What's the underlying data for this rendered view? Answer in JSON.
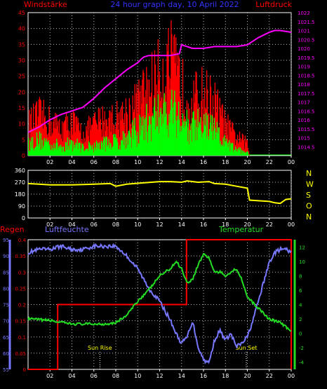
{
  "header": {
    "left_label": "Windstärke",
    "title": "24 hour graph day, 10 April 2022",
    "right_label": "Luftdruck"
  },
  "colors": {
    "background": "#000000",
    "frame": "#ffffff",
    "grid": "#bbbbbb",
    "wind_gust": "#ff0000",
    "wind_mean": "#00ff00",
    "pressure": "#ff00ff",
    "direction": "#ffff00",
    "humidity": "#7777ff",
    "temperature": "#22dd22",
    "rain": "#ff0000",
    "dir_letters": "#ffff00",
    "title": "#3333ff"
  },
  "time_axis": {
    "ticks": [
      "02",
      "04",
      "06",
      "08",
      "10",
      "12",
      "14",
      "16",
      "18",
      "20",
      "22",
      "00"
    ]
  },
  "chart_data": [
    {
      "type": "bar",
      "name": "wind-pressure",
      "y_left": {
        "title": "Windstärke",
        "range": [
          0,
          45
        ],
        "ticks": [
          "0",
          "5",
          "10",
          "15",
          "20",
          "25",
          "30",
          "35",
          "40",
          "45"
        ]
      },
      "y_right": {
        "title": "Luftdruck",
        "range": [
          1014,
          1022
        ],
        "ticks": [
          "1014.5",
          "1015",
          "1015.5",
          "1016",
          "1016.5",
          "1017",
          "1017.5",
          "1018",
          "1018.5",
          "1019",
          "1019.5",
          "1020",
          "1020.5",
          "1021",
          "1021.5",
          "1022"
        ]
      },
      "wind_gust": {
        "hours": [
          0.0,
          1.0,
          2.0,
          3.0,
          4.0,
          5.0,
          6.0,
          7.0,
          8.0,
          9.0,
          10.0,
          11.0,
          12.0,
          13.0,
          14.0,
          15.0,
          16.0,
          17.0,
          18.0,
          19.0,
          20.0,
          20.2
        ],
        "values": [
          10,
          13,
          11,
          9,
          11,
          7,
          10,
          12,
          12,
          14,
          17,
          22,
          26,
          30,
          22,
          18,
          20,
          17,
          10,
          6,
          4,
          0
        ]
      },
      "wind_mean": {
        "hours": [
          0.0,
          1.0,
          2.0,
          3.0,
          4.0,
          5.0,
          6.0,
          7.0,
          8.0,
          9.0,
          10.0,
          11.0,
          12.0,
          13.0,
          14.0,
          15.0,
          16.0,
          17.0,
          18.0,
          19.0,
          20.0,
          20.2
        ],
        "values": [
          4,
          5,
          4,
          3,
          4,
          3,
          3,
          4,
          5,
          6,
          8,
          11,
          14,
          17,
          12,
          9,
          10,
          8,
          4,
          2,
          1,
          0
        ]
      },
      "pressure": {
        "hours": [
          0.0,
          1.0,
          2.0,
          3.0,
          4.0,
          5.0,
          6.0,
          7.0,
          8.0,
          9.0,
          10.0,
          10.5,
          11.0,
          12.0,
          13.0,
          13.8,
          14.0,
          14.5,
          15.0,
          16.0,
          17.0,
          18.0,
          19.0,
          20.0,
          21.0,
          22.0,
          22.5,
          23.0,
          24.0
        ],
        "values": [
          1015.3,
          1015.6,
          1016.0,
          1016.3,
          1016.5,
          1016.7,
          1017.2,
          1017.8,
          1018.3,
          1018.8,
          1019.2,
          1019.5,
          1019.6,
          1019.6,
          1019.6,
          1019.7,
          1020.2,
          1020.1,
          1020.0,
          1020.0,
          1020.1,
          1020.1,
          1020.1,
          1020.2,
          1020.6,
          1020.9,
          1021.0,
          1021.0,
          1020.9
        ]
      }
    },
    {
      "type": "line",
      "name": "wind-direction",
      "y_left": {
        "range": [
          0,
          360
        ],
        "ticks": [
          "0",
          "90",
          "180",
          "270",
          "360"
        ]
      },
      "right_letters": [
        "N",
        "W",
        "S",
        "O",
        "N"
      ],
      "series": [
        {
          "hours": [
            0.0,
            1.0,
            2.0,
            4.0,
            6.0,
            7.5,
            8.0,
            9.0,
            10.5,
            12.0,
            13.0,
            14.0,
            14.5,
            15.5,
            16.5,
            17.0,
            18.0,
            19.0,
            20.0,
            20.2,
            21.0,
            22.0,
            22.5,
            23.0,
            23.5,
            24.0
          ],
          "values": [
            260,
            255,
            250,
            250,
            255,
            260,
            240,
            255,
            265,
            275,
            275,
            270,
            280,
            270,
            275,
            260,
            255,
            240,
            225,
            135,
            130,
            125,
            115,
            110,
            140,
            145
          ]
        }
      ]
    },
    {
      "type": "line",
      "name": "humidity-temperature-rain",
      "labels": {
        "rain": "Regen",
        "humidity": "Luftfeuchte",
        "temperature": "Temperatur",
        "sunrise": "Sun Rise",
        "sunset": "Sun Set"
      },
      "y_rain": {
        "range": [
          0,
          0.4
        ],
        "ticks": [
          "0",
          "0.05",
          "0.1",
          "0.15",
          "0.2",
          "0.25",
          "0.3",
          "0.35",
          "0.4"
        ]
      },
      "y_humidity": {
        "range": [
          55,
          95
        ],
        "ticks": [
          "55",
          "60",
          "65",
          "70",
          "75",
          "80",
          "85",
          "90",
          "95"
        ]
      },
      "y_temperature": {
        "range": [
          -5,
          13
        ],
        "ticks": [
          "-4",
          "-2",
          "0",
          "2",
          "4",
          "6",
          "8",
          "10",
          "12"
        ]
      },
      "sunrise_hour": 6.55,
      "sunset_hour": 19.9,
      "humidity": {
        "hours": [
          0.0,
          1.0,
          2.0,
          3.0,
          4.0,
          5.0,
          6.0,
          7.0,
          8.0,
          9.0,
          10.0,
          11.0,
          12.0,
          12.5,
          13.0,
          13.5,
          14.0,
          14.5,
          15.0,
          15.5,
          16.0,
          16.5,
          17.0,
          17.5,
          18.0,
          18.5,
          19.0,
          19.5,
          20.0,
          20.5,
          21.0,
          21.5,
          22.0,
          22.5,
          23.0,
          23.5,
          24.0
        ],
        "values": [
          91,
          92,
          92,
          93,
          92,
          92,
          93,
          93,
          93,
          90,
          86,
          80,
          76,
          73,
          70,
          66,
          63,
          65,
          70,
          62,
          58,
          57,
          64,
          67,
          64,
          66,
          62,
          63,
          65,
          70,
          76,
          82,
          88,
          91,
          92,
          92,
          91
        ]
      },
      "temperature": {
        "hours": [
          0.0,
          1.0,
          2.0,
          3.0,
          4.0,
          5.0,
          6.0,
          7.0,
          8.0,
          9.0,
          10.0,
          11.0,
          11.5,
          12.0,
          12.5,
          13.0,
          13.5,
          14.0,
          14.5,
          15.0,
          15.5,
          16.0,
          16.5,
          17.0,
          17.5,
          18.0,
          18.5,
          19.0,
          19.5,
          20.0,
          21.0,
          22.0,
          23.0,
          24.0
        ],
        "values": [
          2.0,
          1.9,
          1.8,
          1.5,
          1.3,
          1.3,
          1.3,
          1.3,
          1.5,
          2.5,
          4.5,
          6.0,
          7.0,
          8.0,
          8.5,
          9.0,
          10.0,
          9.0,
          7.0,
          7.5,
          9.5,
          11.0,
          10.5,
          8.5,
          8.5,
          8.0,
          8.5,
          9.0,
          7.5,
          5.0,
          3.5,
          2.0,
          1.5,
          0.3
        ]
      },
      "rain": {
        "hours": [
          0.0,
          2.7,
          2.7,
          14.45,
          14.45,
          24.0
        ],
        "values": [
          0.0,
          0.0,
          0.2,
          0.2,
          0.4,
          0.4
        ]
      }
    }
  ]
}
